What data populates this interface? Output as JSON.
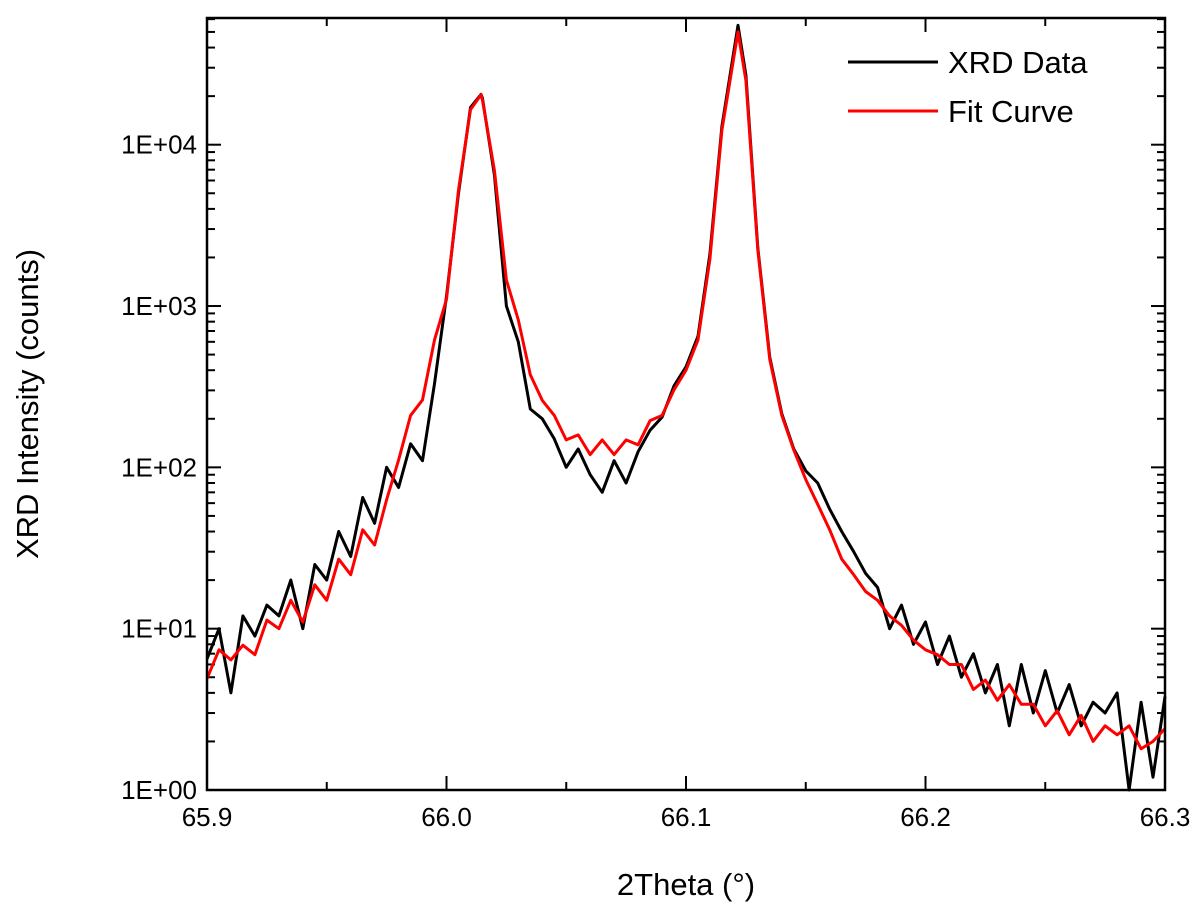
{
  "chart_data": {
    "type": "line",
    "title": "",
    "xlabel": "2Theta (°)",
    "ylabel": "XRD Intensity (counts)",
    "xlim": [
      65.9,
      66.3
    ],
    "ylim": [
      1,
      61000
    ],
    "yscale": "log",
    "grid": false,
    "legend_position": "top-right",
    "x_ticks": [
      {
        "value": 65.9,
        "label": "65.9"
      },
      {
        "value": 66.0,
        "label": "66.0"
      },
      {
        "value": 66.1,
        "label": "66.1"
      },
      {
        "value": 66.2,
        "label": "66.2"
      },
      {
        "value": 66.3,
        "label": "66.3"
      }
    ],
    "y_ticks": [
      {
        "value": 1,
        "label": "1E+00"
      },
      {
        "value": 10,
        "label": "1E+01"
      },
      {
        "value": 100,
        "label": "1E+02"
      },
      {
        "value": 1000,
        "label": "1E+03"
      },
      {
        "value": 10000,
        "label": "1E+04"
      }
    ],
    "x": [
      65.9,
      65.905,
      65.91,
      65.915,
      65.92,
      65.925,
      65.93,
      65.935,
      65.94,
      65.945,
      65.95,
      65.955,
      65.96,
      65.965,
      65.97,
      65.975,
      65.98,
      65.985,
      65.99,
      65.995,
      66.0,
      66.005,
      66.01,
      66.0144,
      66.015,
      66.02,
      66.025,
      66.03,
      66.035,
      66.04,
      66.045,
      66.05,
      66.055,
      66.06,
      66.065,
      66.07,
      66.075,
      66.08,
      66.085,
      66.09,
      66.095,
      66.1,
      66.105,
      66.11,
      66.115,
      66.1217,
      66.125,
      66.13,
      66.135,
      66.14,
      66.145,
      66.15,
      66.155,
      66.16,
      66.165,
      66.17,
      66.175,
      66.18,
      66.185,
      66.19,
      66.195,
      66.2,
      66.205,
      66.21,
      66.215,
      66.22,
      66.225,
      66.23,
      66.235,
      66.24,
      66.245,
      66.25,
      66.255,
      66.26,
      66.265,
      66.27,
      66.275,
      66.28,
      66.285,
      66.29,
      66.295,
      66.3
    ],
    "series": [
      {
        "name": "XRD Data",
        "color": "#000000",
        "values": [
          6.5,
          10,
          4.0,
          12,
          9,
          14,
          12,
          20,
          10,
          25,
          20,
          40,
          28,
          65,
          45,
          100,
          75,
          140,
          110,
          330,
          1150,
          5000,
          17000,
          20500,
          19500,
          6500,
          1000,
          600,
          230,
          200,
          150,
          100,
          130,
          90,
          70,
          110,
          80,
          125,
          170,
          205,
          320,
          420,
          650,
          2100,
          13000,
          55000,
          27000,
          2300,
          480,
          215,
          130,
          95,
          80,
          55,
          40,
          30,
          22,
          18,
          10,
          14,
          8,
          11,
          6,
          9,
          5,
          7,
          4,
          6,
          2.5,
          6,
          3,
          5.5,
          3,
          4.5,
          2.5,
          3.5,
          3,
          4,
          1.0,
          3.5,
          1.2,
          3.8
        ]
      },
      {
        "name": "Fit Curve",
        "color": "#ff0000",
        "values": [
          4.9,
          7.4,
          6.4,
          7.9,
          6.9,
          11.3,
          10,
          15,
          11,
          18.7,
          15,
          27,
          21.6,
          41,
          33,
          63,
          111,
          210,
          262,
          617,
          1100,
          5240,
          16500,
          20400,
          19000,
          6950,
          1450,
          820,
          375,
          260,
          210,
          148,
          159,
          120,
          148,
          120,
          148,
          138,
          195,
          210,
          302,
          400,
          617,
          1950,
          12300,
          50000,
          25000,
          2230,
          465,
          210,
          128,
          84,
          59,
          41,
          27,
          21.6,
          17,
          15,
          12,
          10.5,
          8.5,
          7.4,
          6.9,
          6,
          6,
          4.2,
          4.8,
          3.6,
          4.5,
          3.4,
          3.4,
          2.5,
          3.1,
          2.2,
          2.9,
          2.0,
          2.5,
          2.2,
          2.5,
          1.8,
          2.0,
          2.4
        ]
      }
    ]
  }
}
